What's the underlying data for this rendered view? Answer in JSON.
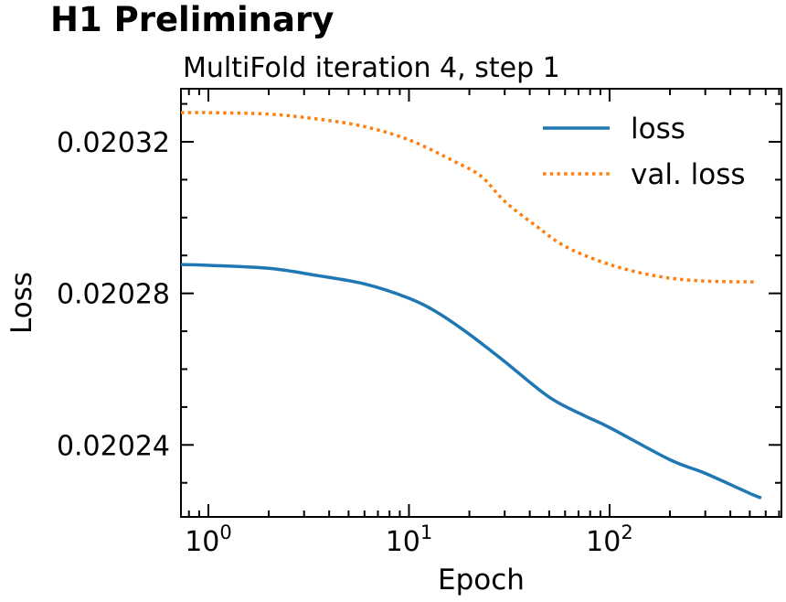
{
  "header": {
    "title": "H1 Preliminary"
  },
  "chart_data": {
    "type": "line",
    "title": "MultiFold iteration 4, step 1",
    "title_loc": "left",
    "xlabel": "Epoch",
    "ylabel": "Loss",
    "xscale": "log",
    "yscale": "linear",
    "xlim": [
      0.73,
      719
    ],
    "ylim": [
      0.020221,
      0.020334
    ],
    "grid": false,
    "x_major_ticks": [
      1,
      10,
      100
    ],
    "x_major_tick_labels": [
      "10^0",
      "10^1",
      "10^2"
    ],
    "y_major_ticks": [
      0.02024,
      0.02028,
      0.02032
    ],
    "y_major_tick_labels": [
      "0.02024",
      "0.02028",
      "0.02032"
    ],
    "y_minor_step": 1e-05,
    "tick_style": "in-all-sides",
    "legend_position": "upper right",
    "colors": {
      "loss": "#1f77b4",
      "val_loss": "#ff7f0e",
      "axes": "#000000",
      "background": "#ffffff"
    },
    "series": [
      {
        "name": "loss",
        "color": "#1f77b4",
        "style": "solid",
        "points": [
          [
            0.73,
            0.0202876
          ],
          [
            1,
            0.0202874
          ],
          [
            2,
            0.0202866
          ],
          [
            3.5,
            0.0202847
          ],
          [
            6,
            0.0202825
          ],
          [
            10,
            0.0202787
          ],
          [
            14,
            0.0202748
          ],
          [
            20,
            0.0202692
          ],
          [
            30,
            0.020262
          ],
          [
            50,
            0.0202526
          ],
          [
            75,
            0.0202477
          ],
          [
            100,
            0.0202446
          ],
          [
            200,
            0.0202361
          ],
          [
            300,
            0.0202325
          ],
          [
            500,
            0.0202272
          ],
          [
            570,
            0.020226
          ]
        ]
      },
      {
        "name": "val. loss",
        "color": "#ff7f0e",
        "style": "dotted",
        "points": [
          [
            0.73,
            0.0203277
          ],
          [
            1,
            0.0203277
          ],
          [
            2,
            0.0203273
          ],
          [
            3.5,
            0.020326
          ],
          [
            6,
            0.020324
          ],
          [
            10,
            0.0203205
          ],
          [
            17,
            0.0203147
          ],
          [
            23,
            0.0203108
          ],
          [
            30,
            0.0203043
          ],
          [
            43,
            0.0202978
          ],
          [
            61,
            0.0202922
          ],
          [
            103,
            0.0202874
          ],
          [
            174,
            0.0202845
          ],
          [
            285,
            0.0202833
          ],
          [
            540,
            0.020283
          ]
        ]
      }
    ]
  }
}
